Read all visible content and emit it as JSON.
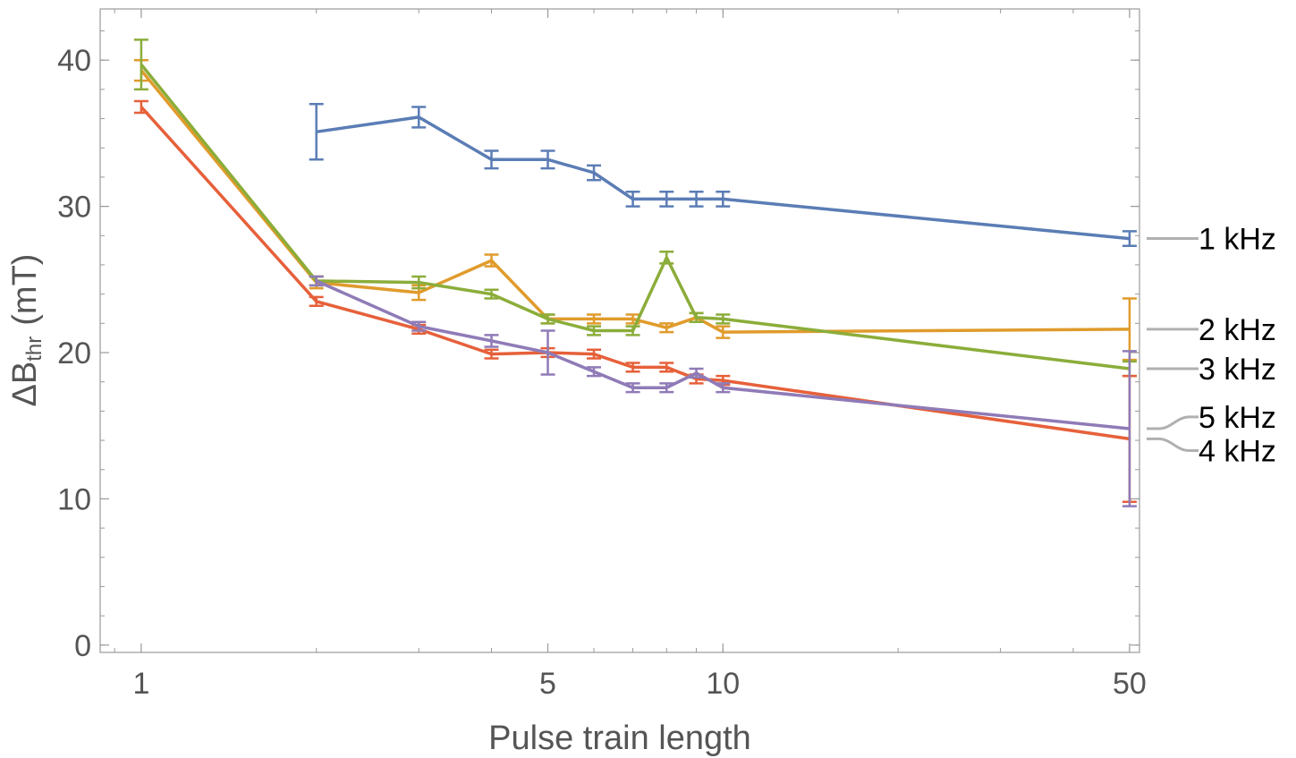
{
  "chart_data": {
    "type": "line",
    "xscale": "log",
    "xlabel": "Pulse train length",
    "ylabel_main": "ΔB",
    "ylabel_sub": "thr",
    "ylabel_unit": "(mT)",
    "xlim": [
      0.85,
      52
    ],
    "ylim": [
      -0.5,
      43.5
    ],
    "x_ticks": [
      {
        "value": 1,
        "label": "1"
      },
      {
        "value": 5,
        "label": "5"
      },
      {
        "value": 10,
        "label": "10"
      },
      {
        "value": 50,
        "label": "50"
      }
    ],
    "y_ticks": [
      {
        "value": 0,
        "label": "0"
      },
      {
        "value": 10,
        "label": "10"
      },
      {
        "value": 20,
        "label": "20"
      },
      {
        "value": 30,
        "label": "30"
      },
      {
        "value": 40,
        "label": "40"
      }
    ],
    "series": [
      {
        "name": "1 kHz",
        "color": "#5b7db5",
        "x": [
          2,
          3,
          4,
          5,
          6,
          7,
          8,
          9,
          10,
          50
        ],
        "y": [
          35.1,
          36.1,
          33.2,
          33.2,
          32.3,
          30.5,
          30.5,
          30.5,
          30.5,
          27.8
        ],
        "err": [
          1.9,
          0.7,
          0.6,
          0.6,
          0.5,
          0.5,
          0.5,
          0.5,
          0.5,
          0.5
        ]
      },
      {
        "name": "2 kHz",
        "color": "#e09b2c",
        "x": [
          1,
          2,
          3,
          4,
          5,
          6,
          7,
          8,
          9,
          10,
          50
        ],
        "y": [
          39.3,
          24.8,
          24.1,
          26.3,
          22.3,
          22.3,
          22.3,
          21.7,
          22.4,
          21.4,
          21.6
        ],
        "err": [
          0.7,
          0.4,
          0.5,
          0.4,
          0.3,
          0.3,
          0.3,
          0.3,
          0.3,
          0.4,
          2.1
        ]
      },
      {
        "name": "3 kHz",
        "color": "#8bad3a",
        "x": [
          1,
          2,
          3,
          4,
          5,
          6,
          7,
          8,
          9,
          10,
          50
        ],
        "y": [
          39.7,
          24.9,
          24.8,
          24.0,
          22.3,
          21.5,
          21.5,
          26.5,
          22.4,
          22.3,
          18.9
        ],
        "err": [
          1.7,
          0.3,
          0.4,
          0.3,
          0.3,
          0.3,
          0.3,
          0.4,
          0.3,
          0.3,
          0.5
        ]
      },
      {
        "name": "4 kHz",
        "color": "#e6603a",
        "x": [
          1,
          2,
          3,
          4,
          5,
          6,
          7,
          8,
          9,
          10,
          50
        ],
        "y": [
          36.8,
          23.5,
          21.6,
          19.9,
          20.0,
          19.9,
          19.0,
          19.0,
          18.2,
          18.1,
          14.1
        ],
        "err": [
          0.4,
          0.3,
          0.3,
          0.3,
          0.3,
          0.3,
          0.3,
          0.3,
          0.3,
          0.3,
          4.3
        ]
      },
      {
        "name": "5 kHz",
        "color": "#8f7bb7",
        "x": [
          2,
          3,
          4,
          5,
          6,
          7,
          8,
          9,
          10,
          50
        ],
        "y": [
          24.9,
          21.8,
          20.8,
          20.0,
          18.7,
          17.6,
          17.6,
          18.6,
          17.6,
          14.8
        ],
        "err": [
          0.3,
          0.3,
          0.4,
          1.5,
          0.3,
          0.3,
          0.3,
          0.3,
          0.3,
          5.3
        ]
      }
    ],
    "series_labels": [
      {
        "text": "1 kHz",
        "line_y": 27.8,
        "label_y": 27.8,
        "label_offset": 0
      },
      {
        "text": "2 kHz",
        "line_y": 21.6,
        "label_y": 21.6,
        "label_offset": 0
      },
      {
        "text": "3 kHz",
        "line_y": 18.9,
        "label_y": 18.9,
        "label_offset": 0
      },
      {
        "text": "5 kHz",
        "line_y": 14.8,
        "label_y": 15.6,
        "label_offset": 1
      },
      {
        "text": "4 kHz",
        "line_y": 14.1,
        "label_y": 13.3,
        "label_offset": -1
      }
    ],
    "label_line_color": "#b0b0b0"
  }
}
